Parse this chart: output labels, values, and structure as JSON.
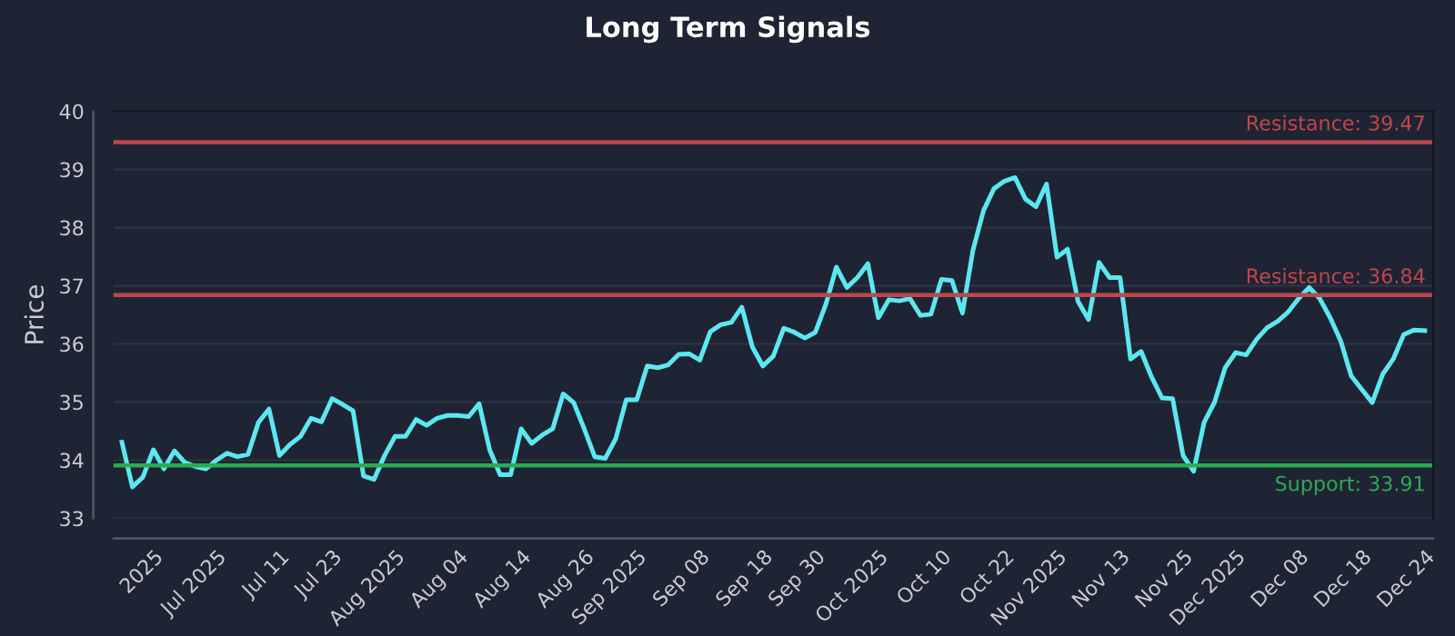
{
  "chart_data": {
    "type": "line",
    "title": "Long Term Signals",
    "ylabel": "Price",
    "categories": [
      null,
      null,
      null,
      "2025",
      null,
      null,
      null,
      null,
      null,
      "Jul 2025",
      null,
      null,
      null,
      null,
      null,
      "Jul 11",
      null,
      null,
      null,
      null,
      "Jul 23",
      null,
      null,
      null,
      null,
      null,
      "Aug 2025",
      null,
      null,
      null,
      null,
      null,
      "Aug 04",
      null,
      null,
      null,
      null,
      null,
      "Aug 14",
      null,
      null,
      null,
      null,
      null,
      "Aug 26",
      null,
      null,
      null,
      null,
      "Sep 2025",
      null,
      null,
      null,
      null,
      null,
      "Sep 08",
      null,
      null,
      null,
      null,
      null,
      "Sep 18",
      null,
      null,
      null,
      null,
      "Sep 30",
      null,
      null,
      null,
      null,
      null,
      "Oct 2025",
      null,
      null,
      null,
      null,
      null,
      "Oct 10",
      null,
      null,
      null,
      null,
      null,
      "Oct 22",
      null,
      null,
      null,
      null,
      "Nov 2025",
      null,
      null,
      null,
      null,
      null,
      "Nov 13",
      null,
      null,
      null,
      null,
      null,
      "Nov 25",
      null,
      null,
      null,
      null,
      "Dec 2025",
      null,
      null,
      null,
      null,
      null,
      "Dec 08",
      null,
      null,
      null,
      null,
      null,
      "Dec 18",
      null,
      null,
      null,
      null,
      null,
      "Dec 24"
    ],
    "series": [
      {
        "color": "#5ce8f0",
        "values": [
          34.31,
          33.54,
          33.71,
          34.18,
          33.85,
          34.16,
          33.96,
          33.89,
          33.85,
          34.0,
          34.12,
          34.06,
          34.1,
          34.65,
          34.88,
          34.08,
          34.27,
          34.41,
          34.72,
          34.66,
          35.06,
          34.96,
          34.85,
          33.73,
          33.67,
          34.08,
          34.41,
          34.41,
          34.7,
          34.6,
          34.72,
          34.77,
          34.77,
          34.75,
          34.97,
          34.18,
          33.75,
          33.75,
          34.54,
          34.29,
          34.43,
          34.54,
          35.14,
          34.99,
          34.54,
          34.06,
          34.03,
          34.37,
          35.04,
          35.04,
          35.62,
          35.59,
          35.64,
          35.82,
          35.83,
          35.72,
          36.21,
          36.33,
          36.37,
          36.63,
          35.95,
          35.62,
          35.79,
          36.27,
          36.2,
          36.1,
          36.2,
          36.68,
          37.32,
          36.97,
          37.14,
          37.38,
          36.45,
          36.76,
          36.74,
          36.78,
          36.49,
          36.51,
          37.11,
          37.09,
          36.53,
          37.61,
          38.29,
          38.67,
          38.8,
          38.86,
          38.49,
          38.36,
          38.75,
          37.49,
          37.63,
          36.73,
          36.42,
          37.4,
          37.14,
          37.14,
          35.74,
          35.87,
          35.43,
          35.07,
          35.06,
          34.08,
          33.81,
          34.65,
          35.0,
          35.59,
          35.85,
          35.81,
          36.08,
          36.28,
          36.39,
          36.55,
          36.78,
          36.97,
          36.78,
          36.45,
          36.05,
          35.45,
          35.22,
          34.99,
          35.48,
          35.74,
          36.16,
          36.24,
          36.23
        ]
      }
    ],
    "ylim": [
      33,
      40
    ],
    "yticks": [
      33,
      34,
      35,
      36,
      37,
      38,
      39,
      40
    ],
    "grid": "y",
    "line_style": "solid",
    "ref_lines": [
      {
        "axis": "y",
        "value": 39.47,
        "label": "Resistance: 39.47",
        "color": "#c0454d"
      },
      {
        "axis": "y",
        "value": 36.84,
        "label": "Resistance: 36.84",
        "color": "#c0454d"
      },
      {
        "axis": "y",
        "value": 33.91,
        "label": "Support: 33.91",
        "color": "#2eaa55"
      }
    ]
  }
}
